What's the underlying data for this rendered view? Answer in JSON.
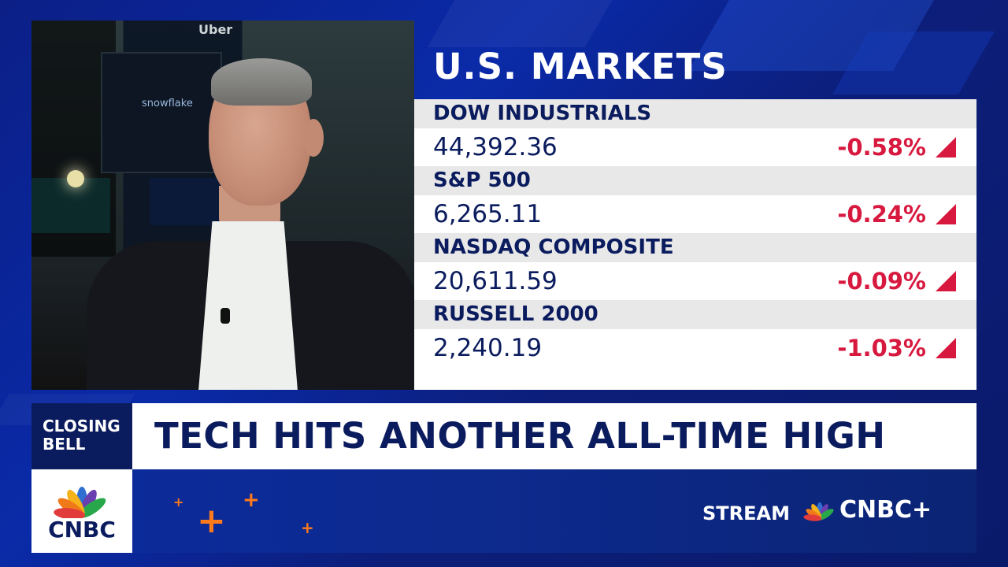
{
  "markets": {
    "title": "U.S. MARKETS",
    "rows": [
      {
        "name": "DOW INDUSTRIALS",
        "value": "44,392.36",
        "change": "-0.58%"
      },
      {
        "name": "S&P 500",
        "value": "6,265.11",
        "change": "-0.24%"
      },
      {
        "name": "NASDAQ COMPOSITE",
        "value": "20,611.59",
        "change": "-0.09%"
      },
      {
        "name": "RUSSELL 2000",
        "value": "2,240.19",
        "change": "-1.03%"
      }
    ],
    "down_color": "#d8193f"
  },
  "show": {
    "line1": "CLOSING",
    "line2": "BELL"
  },
  "headline": "TECH HITS ANOTHER ALL-TIME HIGH",
  "network": {
    "logo_text": "CNBC",
    "stream_label": "STREAM",
    "stream_brand": "CNBC+"
  },
  "background_video": {
    "signs": {
      "uber": "Uber",
      "snowflake": "snowflake"
    }
  },
  "colors": {
    "navy": "#0b1c5e",
    "accent_orange": "#ff7a1a"
  }
}
